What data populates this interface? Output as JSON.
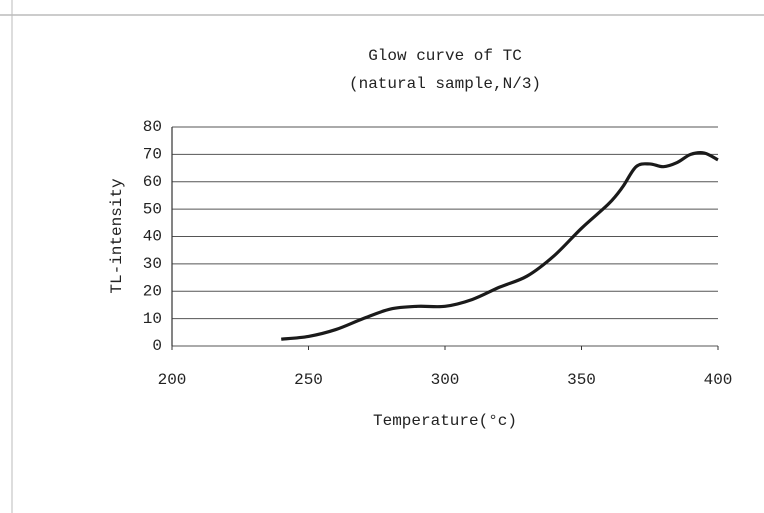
{
  "chart_data": {
    "type": "line",
    "title": "Glow curve of TC",
    "subtitle": "(natural sample,N/3)",
    "x_label": "Temperature(°c)",
    "y_label": "TL-intensity",
    "x": [
      240,
      250,
      260,
      270,
      280,
      290,
      300,
      310,
      320,
      330,
      340,
      350,
      360,
      365,
      370,
      375,
      380,
      385,
      390,
      395,
      400
    ],
    "series": [
      {
        "name": "TC",
        "color": "#1a1a1a",
        "values": [
          2.5,
          3.5,
          6,
          10,
          13.5,
          14.5,
          14.5,
          17,
          21.5,
          25.5,
          33,
          43,
          52,
          58,
          65.5,
          66.5,
          65.5,
          67,
          70,
          70.5,
          68
        ]
      }
    ],
    "xlim": [
      200,
      400
    ],
    "xticks": [
      200,
      250,
      300,
      350,
      400
    ],
    "ylim": [
      0,
      80
    ],
    "yticks": [
      0,
      10,
      20,
      30,
      40,
      50,
      60,
      70,
      80
    ],
    "grid": true
  }
}
